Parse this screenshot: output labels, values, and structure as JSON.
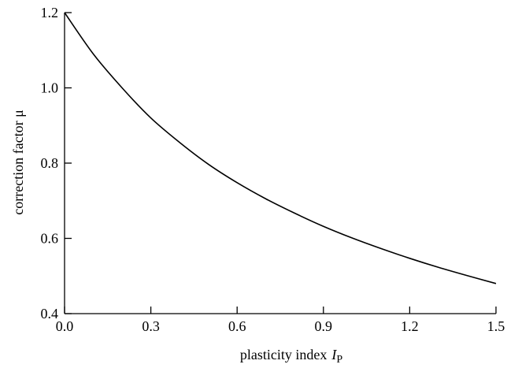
{
  "chart_data": {
    "type": "line",
    "title": "",
    "xlabel": "plasticity index",
    "xlabel_symbol": "I",
    "xlabel_subscript": "P",
    "ylabel": "correction factor μ",
    "xlim": [
      0,
      1.5
    ],
    "ylim": [
      0.4,
      1.2
    ],
    "x_ticks": [
      "0.0",
      "0.3",
      "0.6",
      "0.9",
      "1.2",
      "1.5"
    ],
    "x_tick_values": [
      0,
      0.3,
      0.6,
      0.9,
      1.2,
      1.5
    ],
    "y_ticks": [
      "0.4",
      "0.6",
      "0.8",
      "1.0",
      "1.2"
    ],
    "y_tick_values": [
      0.4,
      0.6,
      0.8,
      1.0,
      1.2
    ],
    "grid": false,
    "legend": "none",
    "line_color": "#000000",
    "series": [
      {
        "x": [
          0.0,
          0.1,
          0.2,
          0.3,
          0.4,
          0.5,
          0.6,
          0.7,
          0.8,
          0.9,
          1.0,
          1.1,
          1.2,
          1.3,
          1.4,
          1.5
        ],
        "y": [
          1.2,
          1.09,
          1.0,
          0.92,
          0.855,
          0.797,
          0.748,
          0.705,
          0.667,
          0.632,
          0.601,
          0.573,
          0.547,
          0.523,
          0.501,
          0.48
        ]
      }
    ]
  }
}
